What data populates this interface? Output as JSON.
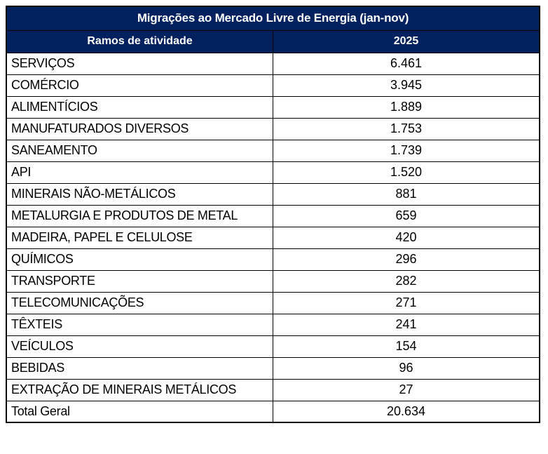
{
  "chart_data": {
    "type": "table",
    "title": "Migrações ao Mercado Livre de Energia (jan-nov)",
    "columns": [
      "Ramos de atividade",
      "2025"
    ],
    "rows": [
      {
        "label": "SERVIÇOS",
        "value": "6.461"
      },
      {
        "label": "COMÉRCIO",
        "value": "3.945"
      },
      {
        "label": "ALIMENTÍCIOS",
        "value": "1.889"
      },
      {
        "label": "MANUFATURADOS DIVERSOS",
        "value": "1.753"
      },
      {
        "label": "SANEAMENTO",
        "value": "1.739"
      },
      {
        "label": "API",
        "value": "1.520"
      },
      {
        "label": "MINERAIS NÃO-METÁLICOS",
        "value": "881"
      },
      {
        "label": "METALURGIA E PRODUTOS DE METAL",
        "value": "659"
      },
      {
        "label": "MADEIRA, PAPEL E CELULOSE",
        "value": "420"
      },
      {
        "label": "QUÍMICOS",
        "value": "296"
      },
      {
        "label": "TRANSPORTE",
        "value": "282"
      },
      {
        "label": "TELECOMUNICAÇÕES",
        "value": "271"
      },
      {
        "label": "TÊXTEIS",
        "value": "241"
      },
      {
        "label": "VEÍCULOS",
        "value": "154"
      },
      {
        "label": "BEBIDAS",
        "value": "96"
      },
      {
        "label": "EXTRAÇÃO DE MINERAIS METÁLICOS",
        "value": "27"
      }
    ],
    "total": {
      "label": "Total Geral",
      "value": "20.634"
    },
    "colors": {
      "header_bg": "#01215E",
      "header_text": "#FFFFFF",
      "border": "#000000",
      "body_text": "#000000"
    }
  }
}
